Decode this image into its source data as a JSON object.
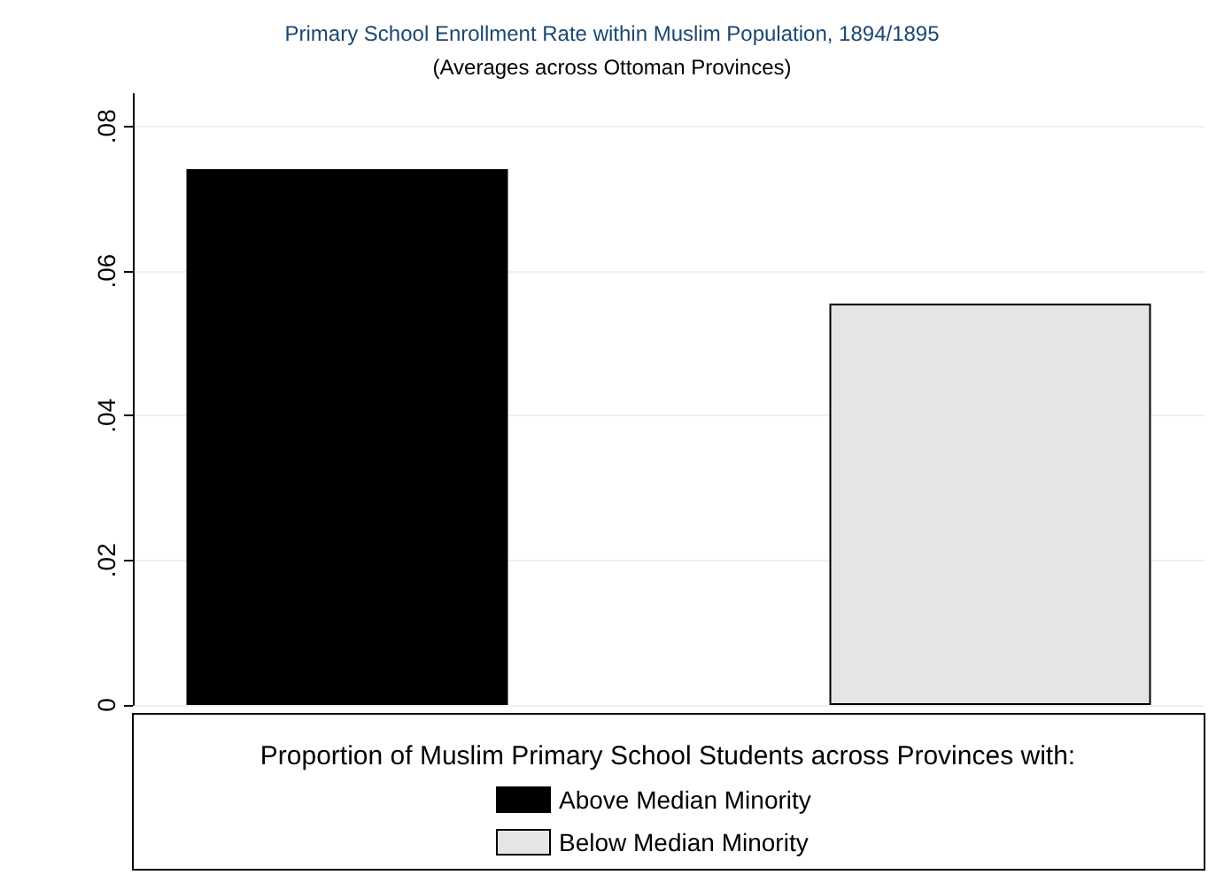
{
  "chart_data": {
    "type": "bar",
    "title": "Primary School Enrollment Rate within Muslim Population, 1894/1895",
    "subtitle": "(Averages across Ottoman Provinces)",
    "legend_title": "Proportion of Muslim Primary School Students across Provinces with:",
    "categories": [
      null
    ],
    "series": [
      {
        "name": "Above Median Minority",
        "color": "#000000",
        "values": [
          0.0741
        ]
      },
      {
        "name": "Below Median Minority",
        "color": "#e5e5e5",
        "values": [
          0.0555
        ]
      }
    ],
    "ylim": [
      0,
      0.0845
    ],
    "yticks": [
      0,
      {
        "value": 0.02,
        "label": ".02"
      },
      {
        "value": 0.04,
        "label": ".04"
      },
      {
        "value": 0.06,
        "label": ".06"
      },
      {
        "value": 0.08,
        "label": ".08"
      }
    ],
    "grid": "y",
    "legend": "bottom"
  }
}
